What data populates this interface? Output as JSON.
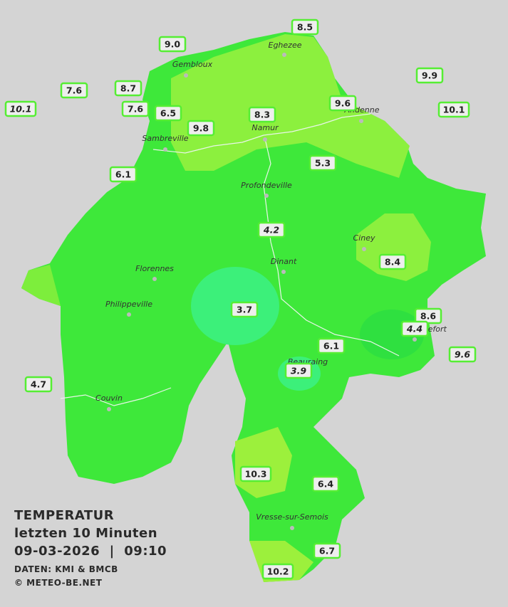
{
  "title": {
    "line1": "TEMPERATUR",
    "line2": "letzten 10 Minuten",
    "line3": "09-03-2026  |  09:10",
    "source": "DATEN: KMI & BMCB",
    "copyright": "© METEO-BE.NET"
  },
  "cities": [
    "Eghezee",
    "Gembloux",
    "Andenne",
    "Namur",
    "Sambreville",
    "Profondeville",
    "Ciney",
    "Florennes",
    "Dinant",
    "Philippeville",
    "Rochefort",
    "Beauraing",
    "Couvin",
    "Vresse-sur-Semois"
  ],
  "stations": [
    {
      "label": "9.0"
    },
    {
      "label": "8.5"
    },
    {
      "label": "9.9"
    },
    {
      "label": "7.6"
    },
    {
      "label": "8.7"
    },
    {
      "label": "10.1",
      "italic": true
    },
    {
      "label": "7.6"
    },
    {
      "label": "6.5"
    },
    {
      "label": "8.3"
    },
    {
      "label": "9.6"
    },
    {
      "label": "10.1"
    },
    {
      "label": "9.8"
    },
    {
      "label": "5.3"
    },
    {
      "label": "6.1"
    },
    {
      "label": "4.2",
      "italic": true
    },
    {
      "label": "8.4"
    },
    {
      "label": "3.7"
    },
    {
      "label": "8.6"
    },
    {
      "label": "4.4",
      "italic": true
    },
    {
      "label": "6.1"
    },
    {
      "label": "9.6",
      "italic": true
    },
    {
      "label": "3.9",
      "italic": true
    },
    {
      "label": "4.7"
    },
    {
      "label": "10.3"
    },
    {
      "label": "6.4"
    },
    {
      "label": "6.7"
    },
    {
      "label": "10.2"
    }
  ]
}
